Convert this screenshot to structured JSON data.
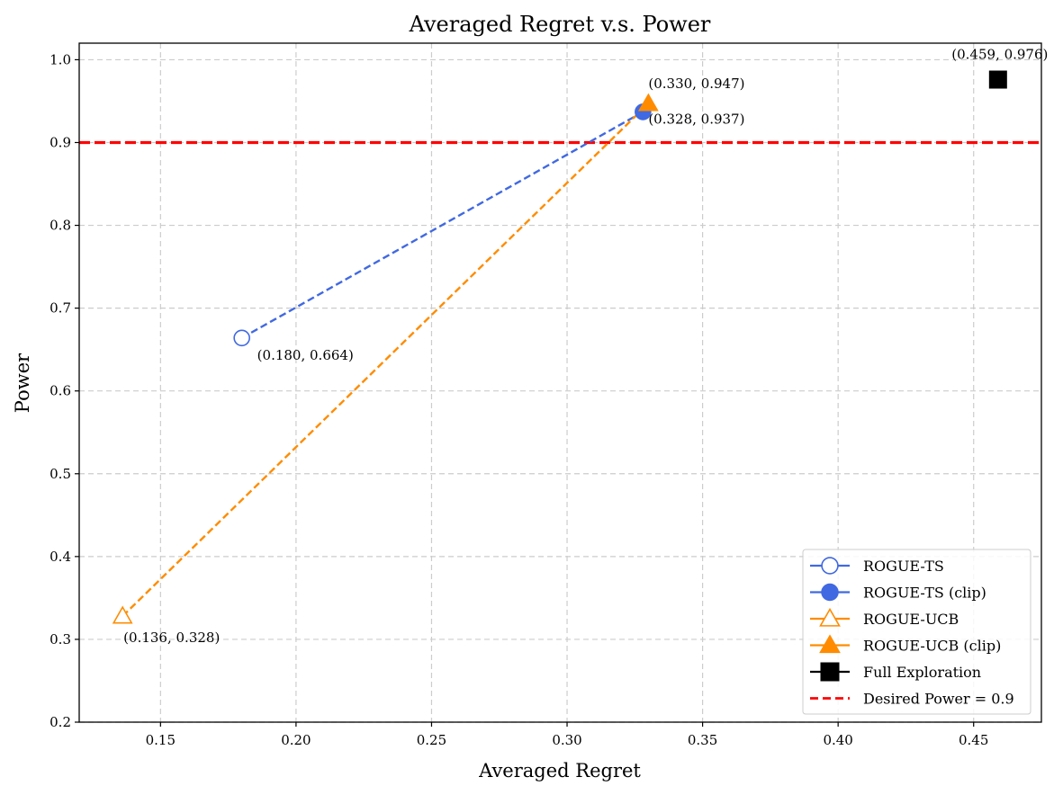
{
  "chart_data": {
    "type": "scatter",
    "title": "Averaged Regret v.s. Power",
    "xlabel": "Averaged Regret",
    "ylabel": "Power",
    "xlim": [
      0.12,
      0.475
    ],
    "ylim": [
      0.2,
      1.02
    ],
    "xticks": [
      0.15,
      0.2,
      0.25,
      0.3,
      0.35,
      0.4,
      0.45
    ],
    "xtick_labels": [
      "0.15",
      "0.20",
      "0.25",
      "0.30",
      "0.35",
      "0.40",
      "0.45"
    ],
    "yticks": [
      0.2,
      0.3,
      0.4,
      0.5,
      0.6,
      0.7,
      0.8,
      0.9,
      1.0
    ],
    "ytick_labels": [
      "0.2",
      "0.3",
      "0.4",
      "0.5",
      "0.6",
      "0.7",
      "0.8",
      "0.9",
      "1.0"
    ],
    "grid": true,
    "legend_position": "bottom-right",
    "series": [
      {
        "name": "ROGUE-TS",
        "x": 0.18,
        "y": 0.664,
        "marker": "circle-open",
        "color": "#4169e1",
        "annotation": "(0.180, 0.664)"
      },
      {
        "name": "ROGUE-TS (clip)",
        "x": 0.328,
        "y": 0.937,
        "marker": "circle-filled",
        "color": "#4169e1",
        "annotation": "(0.328, 0.937)"
      },
      {
        "name": "ROGUE-UCB",
        "x": 0.136,
        "y": 0.328,
        "marker": "triangle-open",
        "color": "#ff8c00",
        "annotation": "(0.136, 0.328)"
      },
      {
        "name": "ROGUE-UCB (clip)",
        "x": 0.33,
        "y": 0.947,
        "marker": "triangle-filled",
        "color": "#ff8c00",
        "annotation": "(0.330, 0.947)"
      },
      {
        "name": "Full Exploration",
        "x": 0.459,
        "y": 0.976,
        "marker": "square-filled",
        "color": "#000000",
        "annotation": "(0.459, 0.976)"
      }
    ],
    "connectors": [
      {
        "from": [
          0.18,
          0.664
        ],
        "to": [
          0.328,
          0.937
        ],
        "color": "#4169e1"
      },
      {
        "from": [
          0.136,
          0.328
        ],
        "to": [
          0.33,
          0.947
        ],
        "color": "#ff8c00"
      }
    ],
    "reference_line": {
      "name": "Desired Power = 0.9",
      "y": 0.9,
      "color": "#ff0000"
    }
  }
}
